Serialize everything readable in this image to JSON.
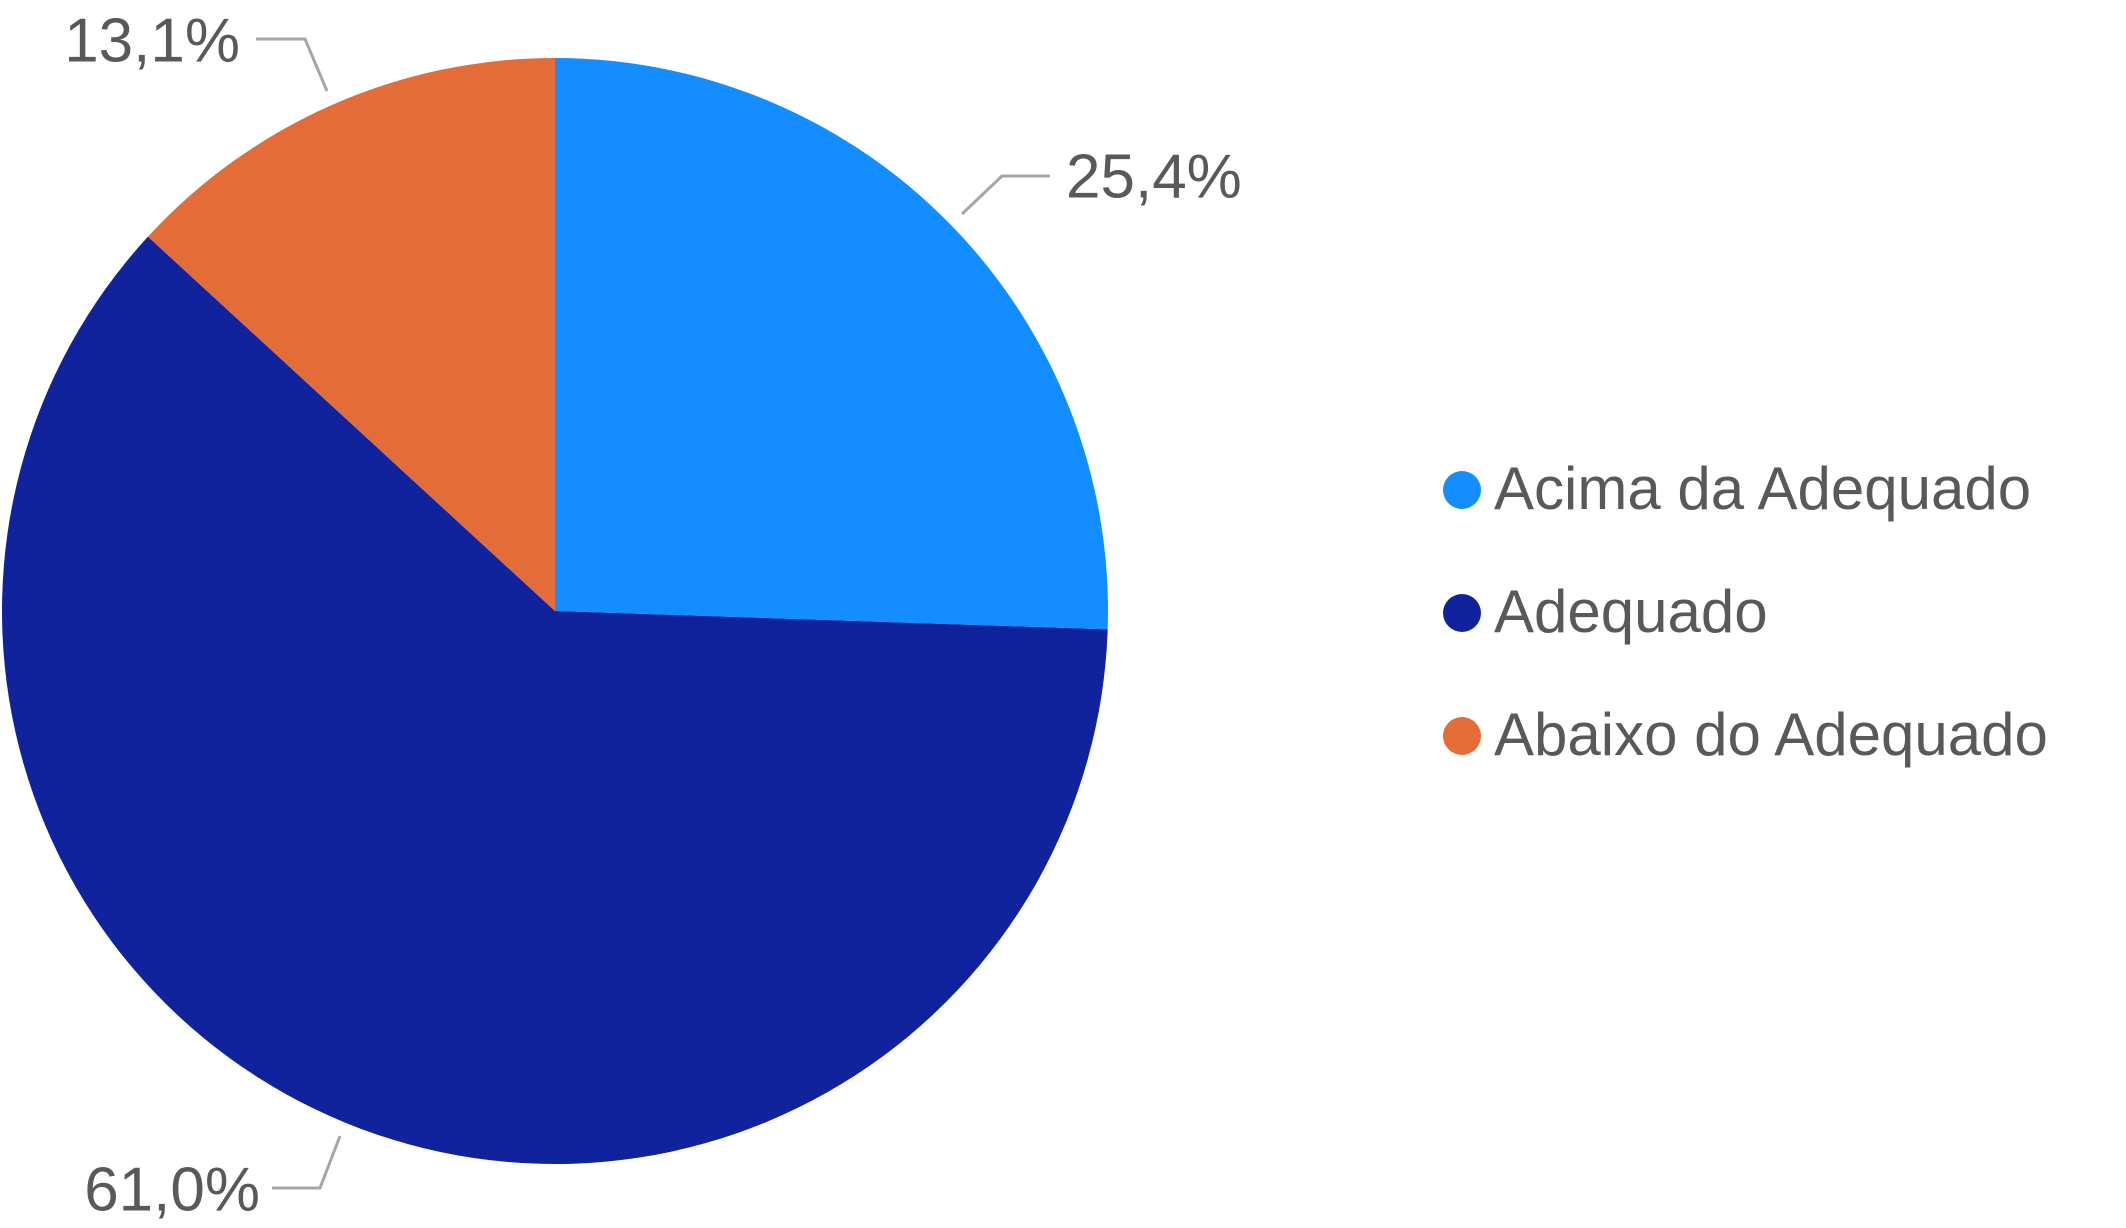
{
  "chart_data": {
    "type": "pie",
    "categories": [
      "Acima da Adequado",
      "Adequado",
      "Abaixo do Adequado"
    ],
    "values": [
      25.4,
      61.0,
      13.1
    ],
    "value_labels": [
      "25,4%",
      "61,0%",
      "13,1%"
    ],
    "colors": [
      "#138dff",
      "#10239d",
      "#e46c38"
    ],
    "legend": "right"
  }
}
